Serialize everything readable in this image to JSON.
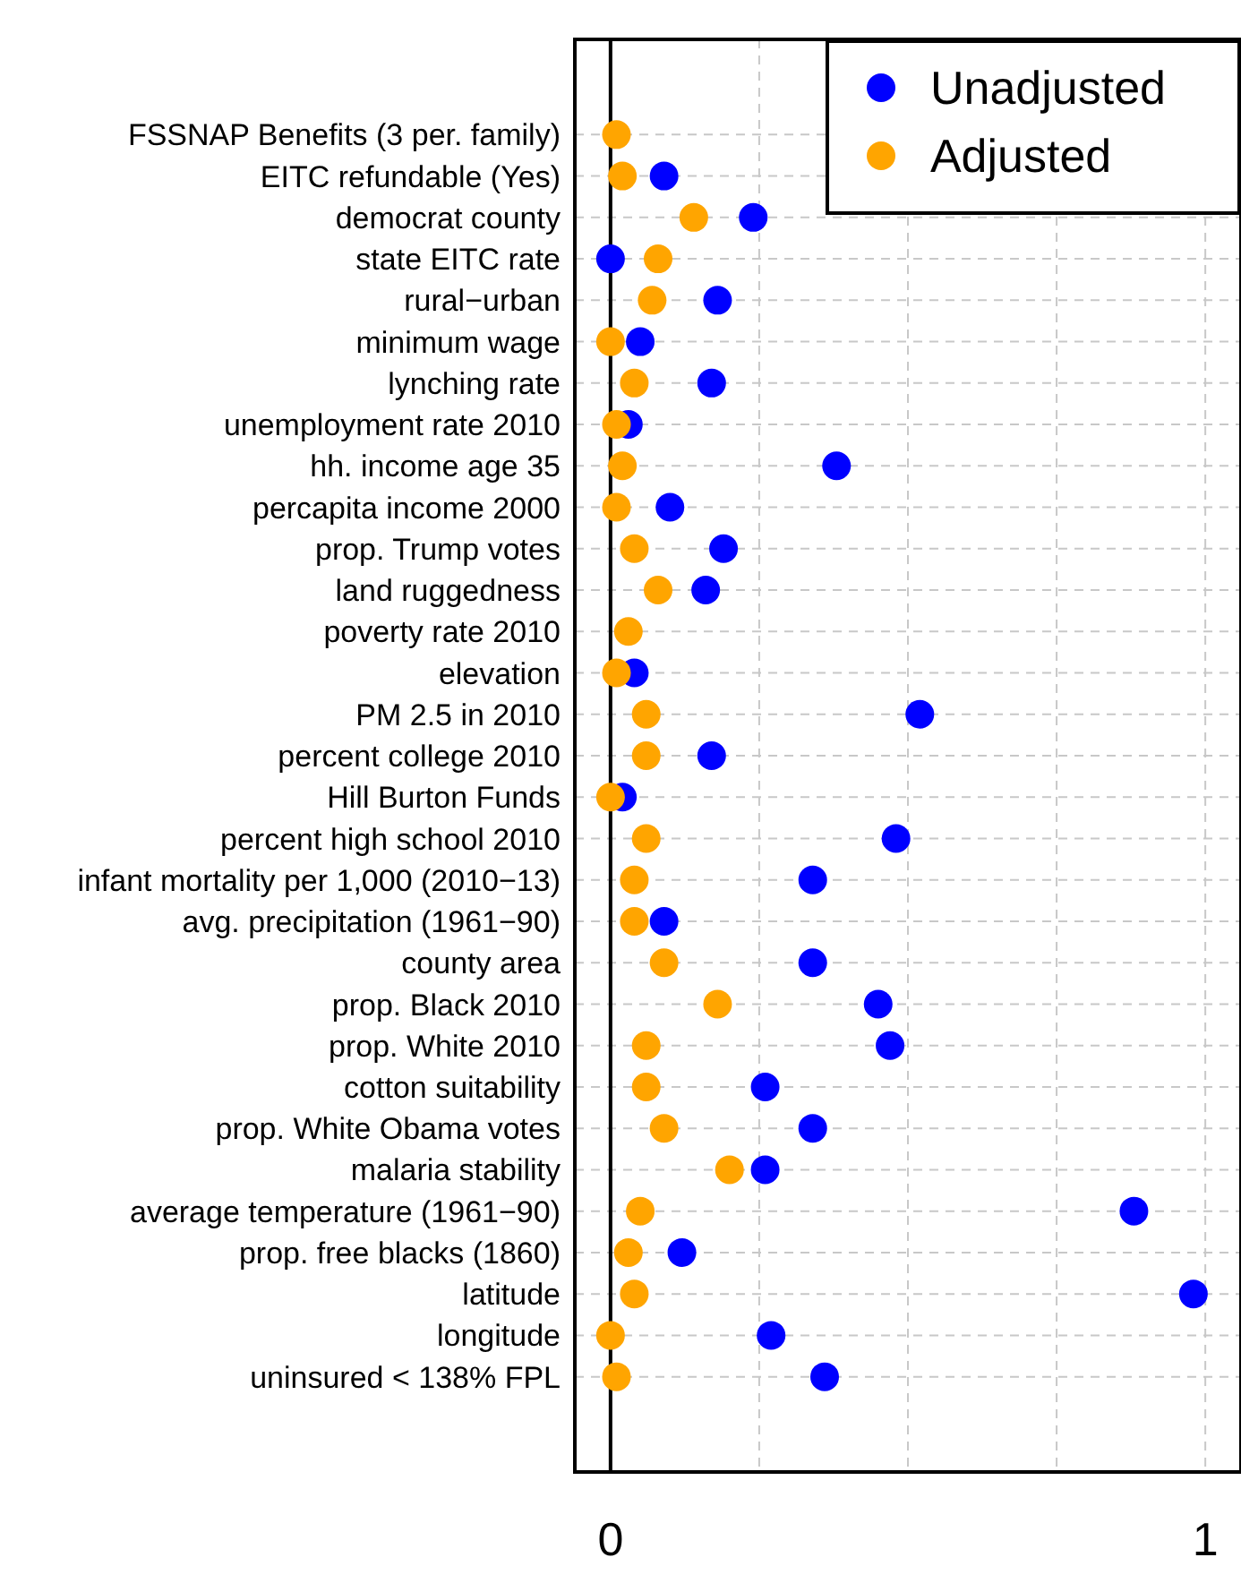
{
  "chart_data": {
    "type": "scatter",
    "categories": [
      "FSSNAP Benefits (3 per. family)",
      "EITC refundable (Yes)",
      "democrat county",
      "state EITC rate",
      "rural−urban",
      "minimum wage",
      "lynching rate",
      "unemployment rate 2010",
      "hh. income age 35",
      "percapita income 2000",
      "prop. Trump votes",
      "land ruggedness",
      "poverty rate 2010",
      "elevation",
      "PM 2.5 in 2010",
      "percent college 2010",
      "Hill Burton Funds",
      "percent high school 2010",
      "infant mortality per 1,000 (2010−13)",
      "avg. precipitation (1961−90)",
      "county area",
      "prop. Black 2010",
      "prop. White 2010",
      "cotton suitability",
      "prop. White Obama votes",
      "malaria stability",
      "average temperature (1961−90)",
      "prop. free blacks (1860)",
      "latitude",
      "longitude",
      "uninsured < 138% FPL"
    ],
    "orientation": "horizontal",
    "series": [
      {
        "name": "Unadjusted",
        "color": "#0000ff",
        "values": [
          null,
          0.09,
          0.24,
          0.0,
          0.18,
          0.05,
          0.17,
          0.03,
          0.38,
          0.1,
          0.19,
          0.16,
          null,
          0.04,
          0.52,
          0.17,
          0.02,
          0.48,
          0.34,
          0.09,
          0.34,
          0.45,
          0.47,
          0.26,
          0.34,
          0.26,
          0.88,
          0.12,
          0.98,
          0.27,
          0.36
        ]
      },
      {
        "name": "Adjusted",
        "color": "#ffa500",
        "values": [
          0.01,
          0.02,
          0.14,
          0.08,
          0.07,
          0.0,
          0.04,
          0.01,
          0.02,
          0.01,
          0.04,
          0.08,
          0.03,
          0.01,
          0.06,
          0.06,
          0.0,
          0.06,
          0.04,
          0.04,
          0.09,
          0.18,
          0.06,
          0.06,
          0.09,
          0.2,
          0.05,
          0.03,
          0.04,
          0.0,
          0.01
        ]
      }
    ],
    "xlim": [
      -0.06,
      1.06
    ],
    "xticks": [
      0,
      {
        "value": 0.25,
        "label": null
      },
      {
        "value": 0.5,
        "label": null
      },
      {
        "value": 0.75,
        "label": null
      },
      1
    ],
    "ref_lines": [
      {
        "axis": "x",
        "value": 0,
        "color": "#000000"
      }
    ],
    "grid": true,
    "legend": "top right",
    "marker": "circle"
  }
}
